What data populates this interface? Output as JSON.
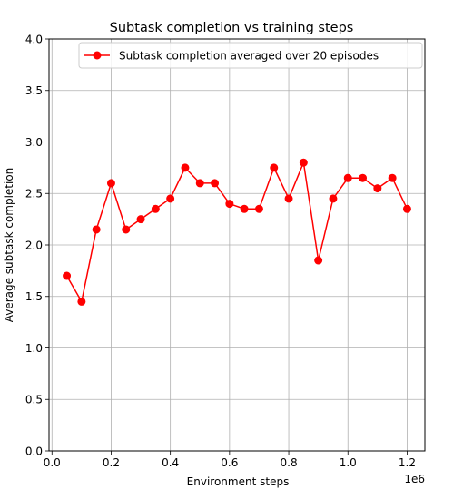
{
  "chart_data": {
    "type": "line",
    "title": "Subtask completion vs training steps",
    "xlabel": "Environment steps",
    "ylabel": "Average subtask completion",
    "x_offset_text": "1e6",
    "xlim": [
      -0.01,
      1.26
    ],
    "ylim": [
      0.0,
      4.0
    ],
    "xticks": [
      0.0,
      0.2,
      0.4,
      0.6,
      0.8,
      1.0,
      1.2
    ],
    "xtick_labels": [
      "0.0",
      "0.2",
      "0.4",
      "0.6",
      "0.8",
      "1.0",
      "1.2"
    ],
    "yticks": [
      0.0,
      0.5,
      1.0,
      1.5,
      2.0,
      2.5,
      3.0,
      3.5,
      4.0
    ],
    "ytick_labels": [
      "0.0",
      "0.5",
      "1.0",
      "1.5",
      "2.0",
      "2.5",
      "3.0",
      "3.5",
      "4.0"
    ],
    "grid": true,
    "legend_position": "top-right",
    "series": [
      {
        "name": "Subtask completion averaged over 20 episodes",
        "color": "#ff0000",
        "marker": "circle",
        "x": [
          0.05,
          0.1,
          0.15,
          0.2,
          0.25,
          0.3,
          0.35,
          0.4,
          0.45,
          0.5,
          0.55,
          0.6,
          0.65,
          0.7,
          0.75,
          0.8,
          0.85,
          0.9,
          0.95,
          1.0,
          1.05,
          1.1,
          1.15,
          1.2
        ],
        "y": [
          1.7,
          1.45,
          2.15,
          2.6,
          2.15,
          2.25,
          2.35,
          2.45,
          2.75,
          2.6,
          2.6,
          2.4,
          2.35,
          2.35,
          2.75,
          2.45,
          2.8,
          1.85,
          2.45,
          2.65,
          2.65,
          2.55,
          2.65,
          2.35
        ]
      }
    ]
  }
}
